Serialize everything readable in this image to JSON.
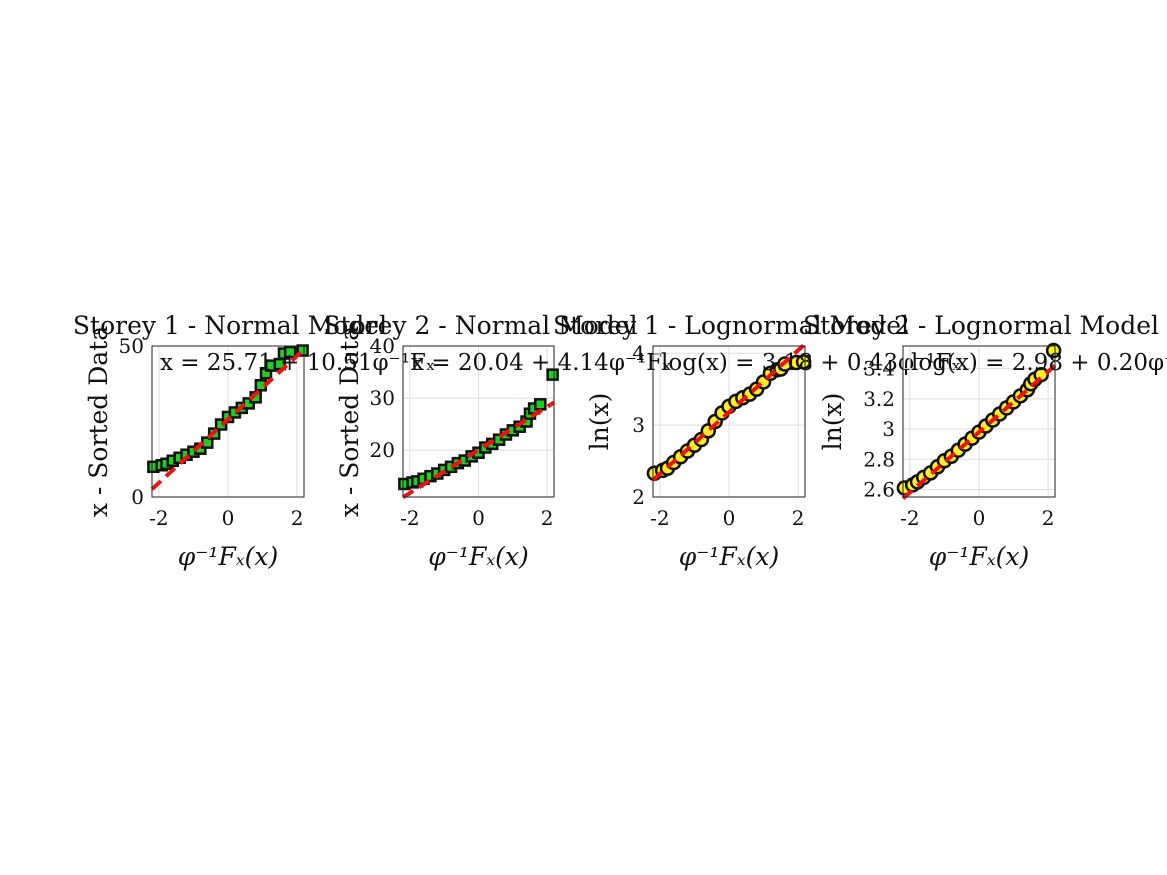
{
  "figure": {
    "background": "#ffffff",
    "grid_color": "#dddddd",
    "fit_line_color": "#ee1111",
    "marker_edge_color": "#111111"
  },
  "chart_data": [
    {
      "type": "scatter",
      "title": "Storey 1 - Normal Model",
      "equation": "x = 25.71 + 10.51φ⁻¹Fₓ",
      "xlabel": "φ⁻¹Fₓ(x)",
      "ylabel": "x - Sorted Data",
      "xlim": [
        -2.2,
        2.2
      ],
      "ylim": [
        0,
        50
      ],
      "xticks": [
        -2,
        0,
        2
      ],
      "xtick_labels": [
        "-2",
        "0",
        "2"
      ],
      "yticks": [
        0,
        50
      ],
      "ytick_labels": [
        "0",
        "50"
      ],
      "grid": true,
      "marker": "square",
      "marker_color": "#22cc22",
      "fit": {
        "intercept": 25.71,
        "slope": 10.51
      },
      "x": [
        -2.16,
        -1.92,
        -1.78,
        -1.6,
        -1.4,
        -1.2,
        -1.0,
        -0.8,
        -0.6,
        -0.4,
        -0.2,
        0.0,
        0.2,
        0.4,
        0.6,
        0.8,
        0.95,
        1.1,
        1.25,
        1.5,
        1.62,
        1.8,
        2.16
      ],
      "y": [
        10.0,
        10.5,
        11.0,
        12.0,
        13.0,
        14.0,
        15.0,
        16.0,
        18.0,
        21.0,
        24.0,
        26.5,
        28.0,
        29.5,
        31.0,
        33.0,
        37.0,
        41.0,
        43.5,
        44.0,
        47.5,
        48.0,
        48.5
      ]
    },
    {
      "type": "scatter",
      "title": "Storey 2 - Normal Model",
      "equation": "x = 20.04 + 4.14φ⁻¹Fₓ",
      "xlabel": "φ⁻¹Fₓ(x)",
      "ylabel": "x - Sorted Data",
      "xlim": [
        -2.2,
        2.2
      ],
      "ylim": [
        11,
        40
      ],
      "xticks": [
        -2,
        0,
        2
      ],
      "xtick_labels": [
        "-2",
        "0",
        "2"
      ],
      "yticks": [
        20,
        30,
        40
      ],
      "ytick_labels": [
        "20",
        "30",
        "40"
      ],
      "grid": true,
      "marker": "square",
      "marker_color": "#22cc22",
      "fit": {
        "intercept": 20.04,
        "slope": 4.14
      },
      "x": [
        -2.16,
        -1.92,
        -1.78,
        -1.6,
        -1.4,
        -1.2,
        -1.0,
        -0.8,
        -0.6,
        -0.4,
        -0.2,
        0.0,
        0.2,
        0.4,
        0.6,
        0.8,
        1.0,
        1.2,
        1.4,
        1.5,
        1.62,
        1.8,
        2.16
      ],
      "y": [
        13.5,
        13.8,
        14.0,
        14.5,
        15.0,
        15.5,
        16.2,
        16.8,
        17.5,
        18.0,
        18.8,
        19.5,
        20.5,
        21.2,
        22.0,
        23.0,
        23.8,
        24.5,
        25.5,
        27.0,
        28.0,
        28.8,
        34.5
      ]
    },
    {
      "type": "scatter",
      "title": "Storey 1 - Lognormal Model",
      "equation": "log(x) = 3.18 + 0.43φ⁻¹Fₓ",
      "xlabel": "φ⁻¹Fₓ(x)",
      "ylabel": "ln(x)",
      "xlim": [
        -2.2,
        2.2
      ],
      "ylim": [
        2,
        4.1
      ],
      "xticks": [
        -2,
        0,
        2
      ],
      "xtick_labels": [
        "-2",
        "0",
        "2"
      ],
      "yticks": [
        2,
        3,
        4
      ],
      "ytick_labels": [
        "2",
        "3",
        "4"
      ],
      "grid": true,
      "marker": "circle",
      "marker_color": "#ffee22",
      "fit": {
        "intercept": 3.18,
        "slope": 0.43
      },
      "x": [
        -2.16,
        -1.92,
        -1.78,
        -1.6,
        -1.4,
        -1.2,
        -1.0,
        -0.8,
        -0.6,
        -0.4,
        -0.2,
        0.0,
        0.2,
        0.4,
        0.6,
        0.8,
        1.0,
        1.2,
        1.4,
        1.5,
        1.62,
        1.95,
        2.16
      ],
      "y": [
        2.33,
        2.37,
        2.4,
        2.48,
        2.56,
        2.64,
        2.72,
        2.8,
        2.92,
        3.05,
        3.17,
        3.26,
        3.33,
        3.38,
        3.43,
        3.5,
        3.6,
        3.72,
        3.77,
        3.78,
        3.85,
        3.87,
        3.88
      ]
    },
    {
      "type": "scatter",
      "title": "Storey 2 - Lognormal Model",
      "equation": "log(x) = 2.98 + 0.20φ⁻¹",
      "xlabel": "φ⁻¹Fₓ(x)",
      "ylabel": "ln(x)",
      "xlim": [
        -2.2,
        2.2
      ],
      "ylim": [
        2.55,
        3.55
      ],
      "xticks": [
        -2,
        0,
        2
      ],
      "xtick_labels": [
        "-2",
        "0",
        "2"
      ],
      "yticks": [
        2.6,
        2.8,
        3.0,
        3.2,
        3.4
      ],
      "ytick_labels": [
        "2.6",
        "2.8",
        "3",
        "3.2",
        "3.4"
      ],
      "grid": true,
      "marker": "circle",
      "marker_color": "#ffee22",
      "fit": {
        "intercept": 2.98,
        "slope": 0.2
      },
      "x": [
        -2.16,
        -1.92,
        -1.78,
        -1.6,
        -1.4,
        -1.2,
        -1.0,
        -0.8,
        -0.6,
        -0.4,
        -0.2,
        0.0,
        0.2,
        0.4,
        0.6,
        0.8,
        1.0,
        1.2,
        1.4,
        1.5,
        1.62,
        1.8,
        2.16
      ],
      "y": [
        2.61,
        2.63,
        2.65,
        2.68,
        2.71,
        2.75,
        2.79,
        2.82,
        2.86,
        2.9,
        2.94,
        2.98,
        3.02,
        3.06,
        3.1,
        3.14,
        3.18,
        3.22,
        3.26,
        3.3,
        3.33,
        3.36,
        3.52
      ]
    }
  ]
}
